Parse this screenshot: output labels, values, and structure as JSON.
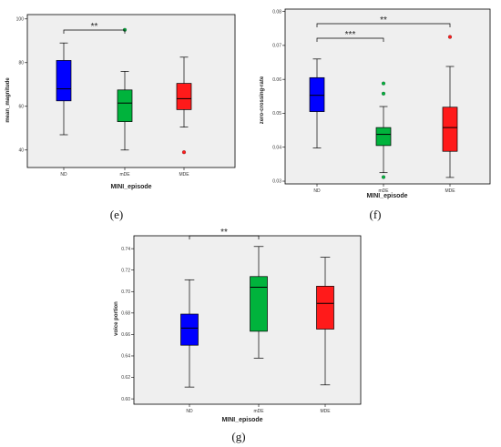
{
  "chart_data": [
    {
      "panel_label": "(e)",
      "type": "box",
      "xlabel": "MINI_episode",
      "ylabel": "mean_magnitude",
      "ylim": [
        32,
        102
      ],
      "yticks": [
        40,
        60,
        80,
        100
      ],
      "categories": [
        "ND",
        "mDE",
        "MDE"
      ],
      "boxes": [
        {
          "category": "ND",
          "color": "#0000ff",
          "whisker_low": 47,
          "q1": 62.5,
          "median": 68,
          "q3": 81,
          "whisker_high": 89,
          "outliers": []
        },
        {
          "category": "mDE",
          "color": "#00b33c",
          "whisker_low": 40,
          "q1": 53,
          "median": 61.5,
          "q3": 67.5,
          "whisker_high": 76,
          "outliers": [
            95
          ]
        },
        {
          "category": "MDE",
          "color": "#ff1a1a",
          "whisker_low": 50.5,
          "q1": 58.5,
          "median": 63.5,
          "q3": 70.5,
          "whisker_high": 82.5,
          "outliers": [
            39
          ]
        }
      ],
      "significance": [
        {
          "from": "ND",
          "to": "mDE",
          "label": "**"
        }
      ]
    },
    {
      "panel_label": "(f)",
      "type": "box",
      "xlabel": "MINI_episode",
      "ylabel": "zero-crossing-rate",
      "ylim": [
        0.0292,
        0.0807
      ],
      "yticks": [
        0.03,
        0.04,
        0.05,
        0.06,
        0.07,
        0.08
      ],
      "categories": [
        "ND",
        "mDE",
        "MDE"
      ],
      "boxes": [
        {
          "category": "ND",
          "color": "#0000ff",
          "whisker_low": 0.0398,
          "q1": 0.0505,
          "median": 0.0553,
          "q3": 0.0605,
          "whisker_high": 0.066,
          "outliers": []
        },
        {
          "category": "mDE",
          "color": "#00b33c",
          "whisker_low": 0.0325,
          "q1": 0.0405,
          "median": 0.0438,
          "q3": 0.0458,
          "whisker_high": 0.052,
          "outliers": [
            0.0588,
            0.0558,
            0.0312
          ]
        },
        {
          "category": "MDE",
          "color": "#ff1a1a",
          "whisker_low": 0.0311,
          "q1": 0.0388,
          "median": 0.0458,
          "q3": 0.0518,
          "whisker_high": 0.0638,
          "outliers": [
            0.0725
          ]
        }
      ],
      "significance": [
        {
          "from": "ND",
          "to": "mDE",
          "label": "***"
        },
        {
          "from": "ND",
          "to": "MDE",
          "label": "**"
        }
      ]
    },
    {
      "panel_label": "(g)",
      "type": "box",
      "xlabel": "MINI_episode",
      "ylabel": "voice portion",
      "ylim": [
        0.595,
        0.752
      ],
      "yticks": [
        0.6,
        0.62,
        0.64,
        0.66,
        0.68,
        0.7,
        0.72,
        0.74
      ],
      "ytick_labels": [
        "0.60",
        "0.62",
        "0.64",
        "0.66",
        "0.68",
        "0.70",
        "0.72",
        "0.74"
      ],
      "categories": [
        "ND",
        "mDE",
        "MDE"
      ],
      "boxes": [
        {
          "category": "ND",
          "color": "#0000ff",
          "whisker_low": 0.611,
          "q1": 0.65,
          "median": 0.666,
          "q3": 0.679,
          "whisker_high": 0.711,
          "outliers": []
        },
        {
          "category": "mDE",
          "color": "#00b33c",
          "whisker_low": 0.638,
          "q1": 0.663,
          "median": 0.704,
          "q3": 0.714,
          "whisker_high": 0.742,
          "outliers": []
        },
        {
          "category": "MDE",
          "color": "#ff1a1a",
          "whisker_low": 0.613,
          "q1": 0.665,
          "median": 0.689,
          "q3": 0.705,
          "whisker_high": 0.732,
          "outliers": []
        }
      ],
      "significance": [
        {
          "from": "ND",
          "to": "mDE",
          "label": "**"
        }
      ]
    }
  ],
  "colors": {
    "plot_bg": "#efefef",
    "frame": "#000000",
    "whisker": "#000000"
  }
}
